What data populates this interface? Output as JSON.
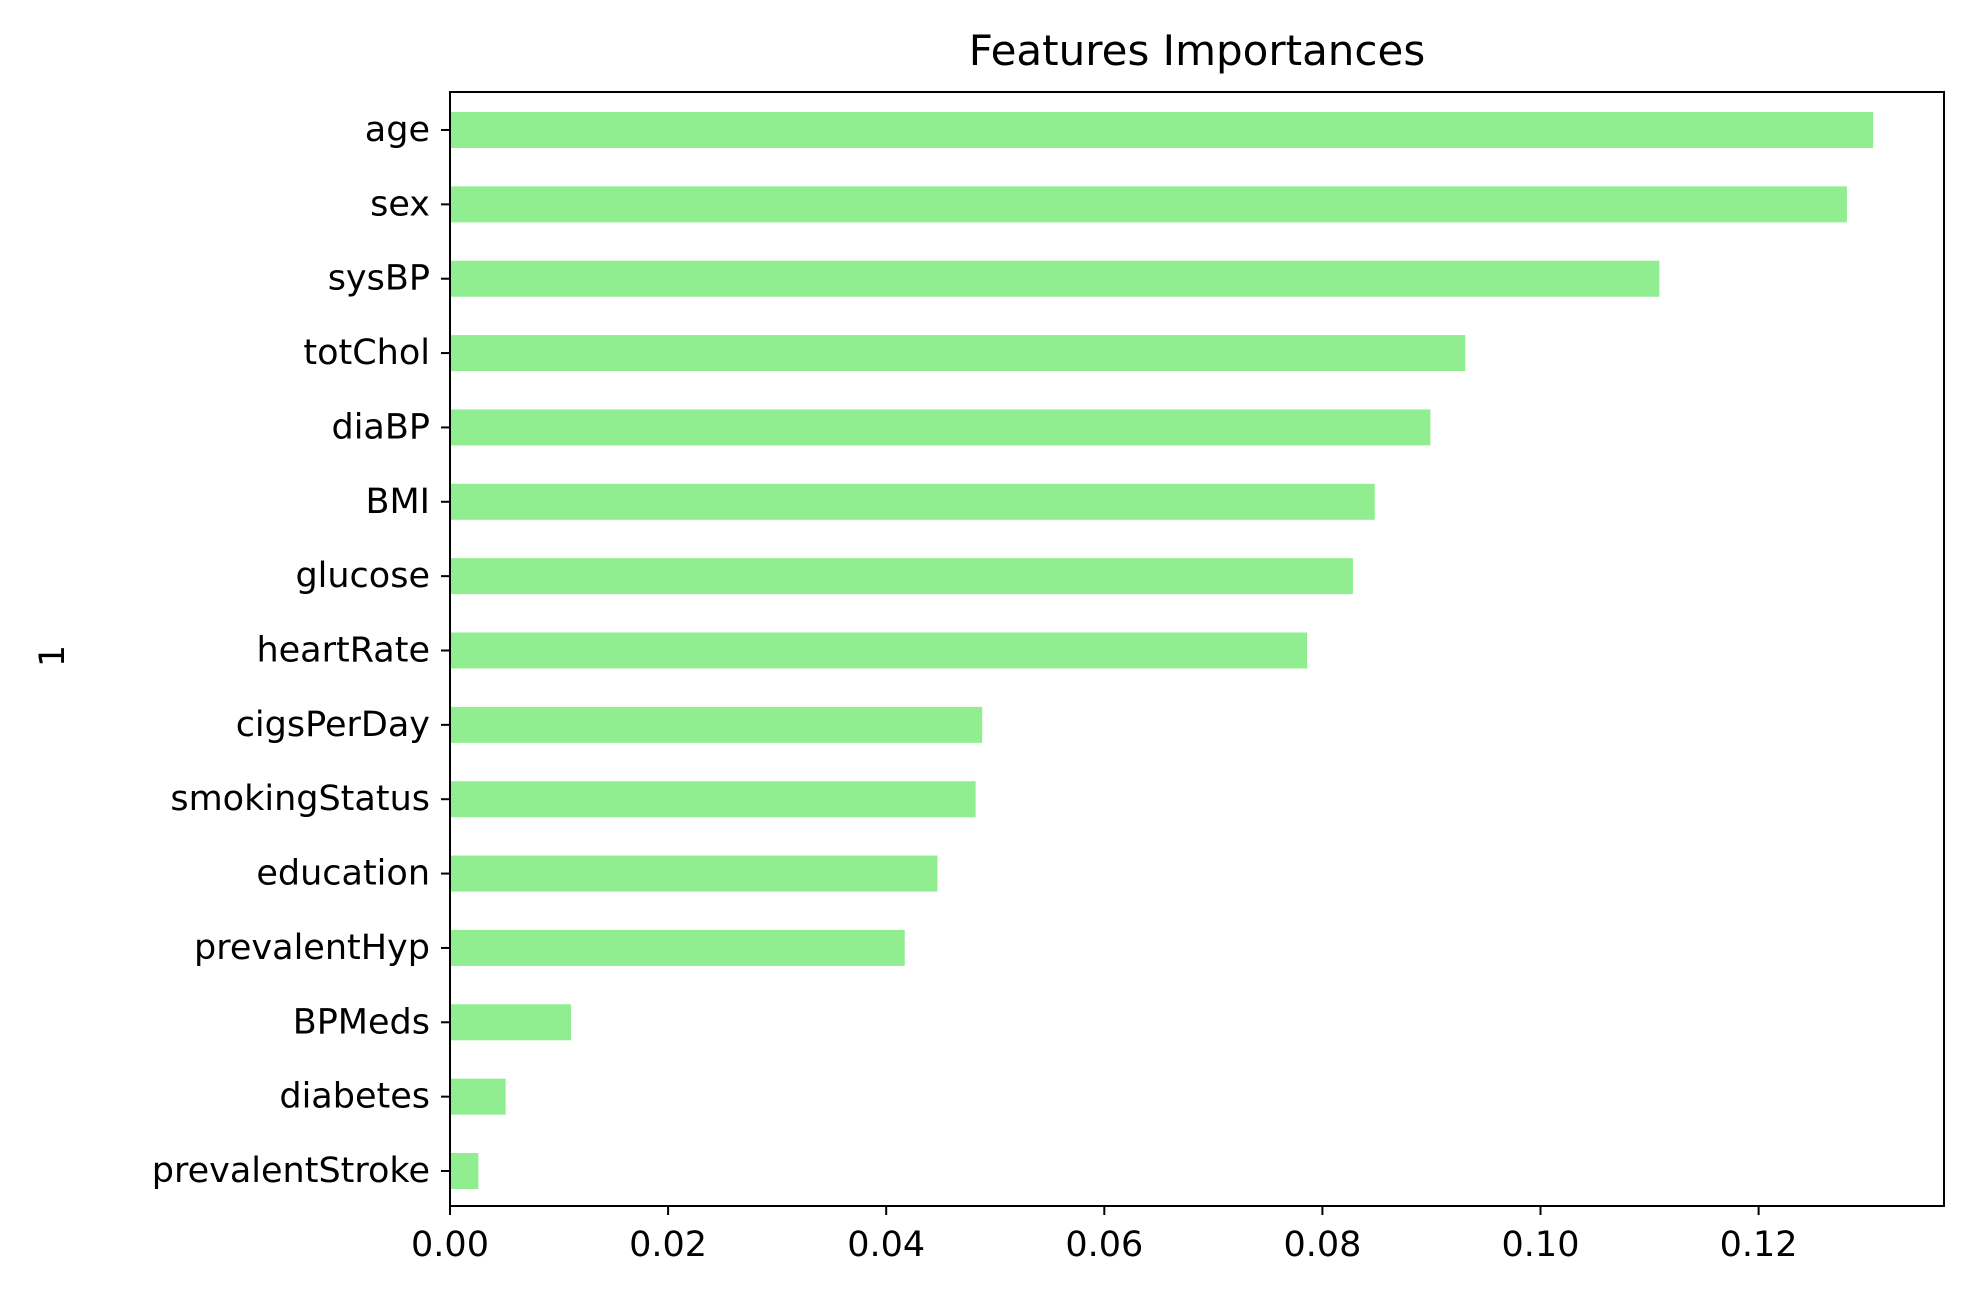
{
  "chart_data": {
    "type": "bar",
    "orientation": "horizontal",
    "title": "Features Importances",
    "xlabel": "",
    "ylabel": "1",
    "categories": [
      "age",
      "sex",
      "sysBP",
      "totChol",
      "diaBP",
      "BMI",
      "glucose",
      "heartRate",
      "cigsPerDay",
      "smokingStatus",
      "education",
      "prevalentHyp",
      "BPMeds",
      "diabetes",
      "prevalentStroke"
    ],
    "values": [
      0.1305,
      0.1281,
      0.1109,
      0.0931,
      0.0899,
      0.0848,
      0.0828,
      0.0786,
      0.0488,
      0.0482,
      0.0447,
      0.0417,
      0.0111,
      0.0051,
      0.0026
    ],
    "xlim": [
      0,
      0.137
    ],
    "xticks": [
      0.0,
      0.02,
      0.04,
      0.06,
      0.08,
      0.1,
      0.12
    ],
    "xtick_labels": [
      "0.00",
      "0.02",
      "0.04",
      "0.06",
      "0.08",
      "0.10",
      "0.12"
    ],
    "bar_color": "#90ee90",
    "grid": false,
    "legend": "none"
  }
}
